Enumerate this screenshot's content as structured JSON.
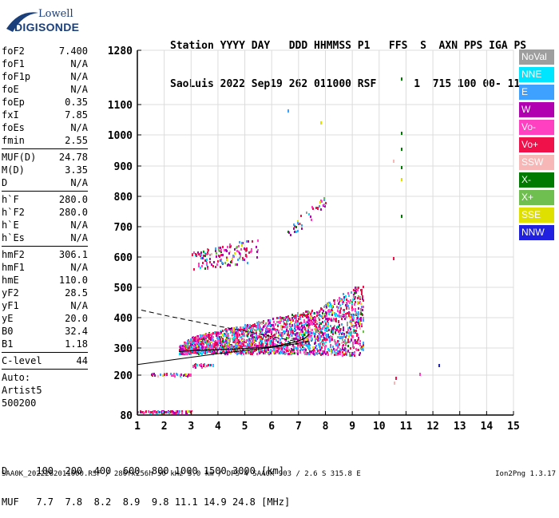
{
  "logo": {
    "line1": "Lowell",
    "line2": "DIGISONDE"
  },
  "header": {
    "line1": "Station YYYY DAY   DDD HHMMSS P1   FFS  S  AXN PPS IGA PS",
    "line2": "SaoLuis 2022 Sep19 262 011000 RSF      1  715 100 00- 11"
  },
  "params": [
    {
      "label": "foF2",
      "value": "7.400"
    },
    {
      "label": "foF1",
      "value": "N/A"
    },
    {
      "label": "foF1p",
      "value": "N/A"
    },
    {
      "label": "foE",
      "value": "N/A"
    },
    {
      "label": "foEp",
      "value": "0.35"
    },
    {
      "label": "fxI",
      "value": "7.85"
    },
    {
      "label": "foEs",
      "value": "N/A"
    },
    {
      "label": "fmin",
      "value": "2.55"
    },
    {
      "label": "MUF(D)",
      "value": "24.78"
    },
    {
      "label": "M(D)",
      "value": "3.35"
    },
    {
      "label": "D",
      "value": "N/A"
    },
    {
      "label": "h`F",
      "value": "280.0"
    },
    {
      "label": "h`F2",
      "value": "280.0"
    },
    {
      "label": "h`E",
      "value": "N/A"
    },
    {
      "label": "h`Es",
      "value": "N/A"
    },
    {
      "label": "hmF2",
      "value": "306.1"
    },
    {
      "label": "hmF1",
      "value": "N/A"
    },
    {
      "label": "hmE",
      "value": "110.0"
    },
    {
      "label": "yF2",
      "value": "28.5"
    },
    {
      "label": "yF1",
      "value": "N/A"
    },
    {
      "label": "yE",
      "value": "20.0"
    },
    {
      "label": "B0",
      "value": "32.4"
    },
    {
      "label": "B1",
      "value": "1.18"
    },
    {
      "label": "C-level",
      "value": "44"
    }
  ],
  "auto": {
    "line1": "Auto:",
    "line2": "Artist5",
    "line3": "500200"
  },
  "legend": [
    {
      "label": "NoVal",
      "color": "#9e9e9e"
    },
    {
      "label": "NNE",
      "color": "#00e5ff"
    },
    {
      "label": "E",
      "color": "#3ea0ff"
    },
    {
      "label": "W",
      "color": "#b000b0"
    },
    {
      "label": "Vo-",
      "color": "#ff40c0"
    },
    {
      "label": "Vo+",
      "color": "#f0104a"
    },
    {
      "label": "SSW",
      "color": "#f7b7b7"
    },
    {
      "label": "X-",
      "color": "#007a00"
    },
    {
      "label": "X+",
      "color": "#6fbf50"
    },
    {
      "label": "SSE",
      "color": "#e0e000"
    },
    {
      "label": "NNW",
      "color": "#2020e0"
    }
  ],
  "footer": {
    "line1": "D     100  200  400  600  800 1000 1500 3000 [km]",
    "line2": "MUF   7.7  7.8  8.2  8.9  9.8 11.1 14.9 24.8 [MHz]",
    "file": "SAA0K_2022262011000.RSF / 280fx256h 50 kHz 5.0 km / DPS-4 SAA0K 903 / 2.6 S 315.8 E",
    "version": "Ion2Png 1.3.17"
  },
  "chart_data": {
    "type": "scatter",
    "title": "",
    "xlabel": "",
    "ylabel": "",
    "xlim": [
      1,
      15
    ],
    "ylim": [
      80,
      1280
    ],
    "x_ticks": [
      "1",
      "2",
      "3",
      "4",
      "5",
      "6",
      "7",
      "8",
      "9",
      "10",
      "11",
      "12",
      "13",
      "14",
      "15"
    ],
    "y_ticks": [
      "80",
      "200",
      "300",
      "400",
      "500",
      "600",
      "700",
      "800",
      "900",
      "1000",
      "1100",
      "1280"
    ],
    "y_tick_values": [
      80,
      200,
      300,
      400,
      500,
      600,
      700,
      800,
      900,
      1000,
      1100,
      1280
    ],
    "grid": true,
    "echo_regions": [
      {
        "fmin": 2.55,
        "fmax": 9.4,
        "hmin": 280,
        "hmax": 520,
        "note": "F2 trace"
      },
      {
        "fmin": 3.0,
        "fmax": 5.5,
        "hmin": 560,
        "hmax": 660,
        "note": "F2 second hop"
      },
      {
        "fmin": 6.5,
        "fmax": 8.0,
        "hmin": 640,
        "hmax": 800,
        "note": "scattered echoes"
      },
      {
        "fmin": 1.0,
        "fmax": 3.0,
        "hmin": 90,
        "hmax": 95,
        "note": "low echoes"
      },
      {
        "fmin": 1.5,
        "fmax": 3.0,
        "hmin": 200,
        "hmax": 210,
        "note": "low echoes"
      }
    ],
    "profile_curve": [
      {
        "f": 1.0,
        "h": 239
      },
      {
        "f": 2.0,
        "h": 252
      },
      {
        "f": 3.0,
        "h": 266
      },
      {
        "f": 4.0,
        "h": 279
      },
      {
        "f": 5.0,
        "h": 291
      },
      {
        "f": 6.0,
        "h": 302
      },
      {
        "f": 7.0,
        "h": 315
      },
      {
        "f": 7.4,
        "h": 322
      }
    ],
    "virtual_height_curve": [
      {
        "f": 2.55,
        "h": 287
      },
      {
        "f": 3.0,
        "h": 290
      },
      {
        "f": 4.0,
        "h": 294
      },
      {
        "f": 5.0,
        "h": 298
      },
      {
        "f": 6.0,
        "h": 304
      },
      {
        "f": 6.8,
        "h": 318
      },
      {
        "f": 7.2,
        "h": 330
      },
      {
        "f": 7.4,
        "h": 345
      }
    ],
    "dashed_curve": [
      {
        "f": 1.15,
        "h": 425
      },
      {
        "f": 2.0,
        "h": 408
      },
      {
        "f": 3.0,
        "h": 390
      },
      {
        "f": 4.0,
        "h": 372
      },
      {
        "f": 5.0,
        "h": 356
      },
      {
        "f": 6.0,
        "h": 338
      },
      {
        "f": 7.0,
        "h": 320
      }
    ],
    "isolated_points": [
      {
        "f": 10.8,
        "h": 1190,
        "color": "#007a00"
      },
      {
        "f": 10.8,
        "h": 1010,
        "color": "#007a00"
      },
      {
        "f": 10.8,
        "h": 960,
        "color": "#007a00"
      },
      {
        "f": 10.8,
        "h": 900,
        "color": "#007a00"
      },
      {
        "f": 10.8,
        "h": 860,
        "color": "#e0e000"
      },
      {
        "f": 10.8,
        "h": 740,
        "color": "#007a00"
      },
      {
        "f": 10.5,
        "h": 920,
        "color": "#f7b7b7"
      },
      {
        "f": 10.5,
        "h": 600,
        "color": "#f0104a"
      },
      {
        "f": 6.6,
        "h": 1085,
        "color": "#3ea0ff"
      },
      {
        "f": 7.8,
        "h": 1045,
        "color": "#e0e000"
      },
      {
        "f": 12.2,
        "h": 240,
        "color": "#2020e0"
      },
      {
        "f": 11.5,
        "h": 210,
        "color": "#ff40c0"
      },
      {
        "f": 10.55,
        "h": 180,
        "color": "#f7b7b7"
      },
      {
        "f": 10.6,
        "h": 195,
        "color": "#f0104a"
      }
    ]
  }
}
